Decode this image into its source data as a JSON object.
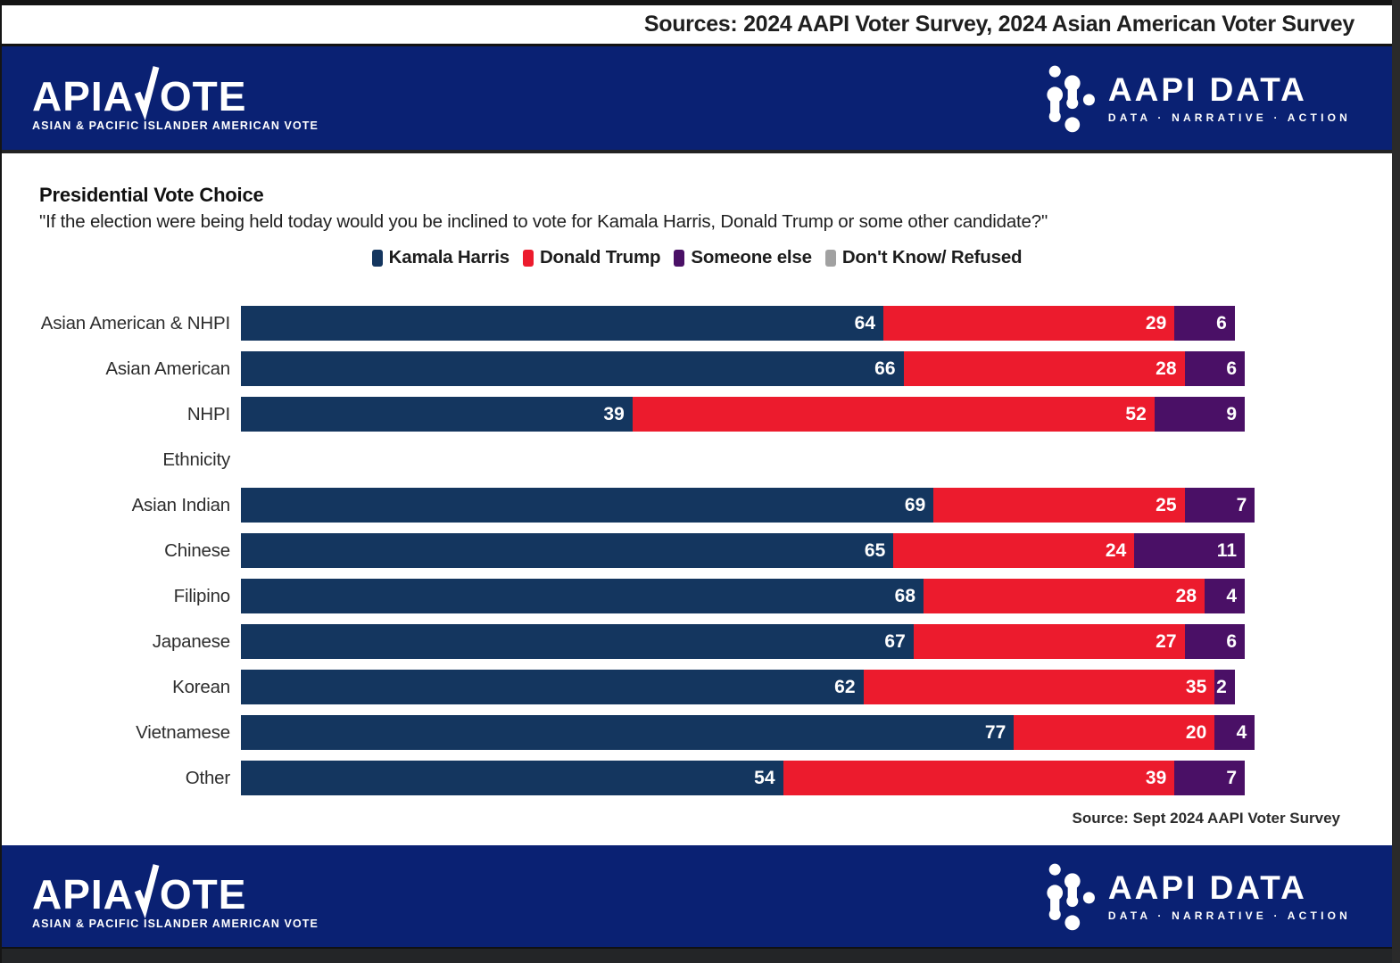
{
  "window": {
    "sources_bar": "Sources: 2024 AAPI Voter Survey, 2024 Asian American Voter Survey"
  },
  "branding": {
    "apiavote": {
      "wordmark_left": "APIA",
      "wordmark_right": "OTE",
      "tagline": "ASIAN & PACIFIC ISLANDER AMERICAN VOTE"
    },
    "aapi_data": {
      "wordmark": "AAPI DATA",
      "tagline": "DATA · NARRATIVE · ACTION"
    }
  },
  "chart_data": {
    "type": "bar",
    "orientation": "horizontal",
    "stacked": true,
    "grid": false,
    "legend_position": "top-center",
    "xlim": [
      0,
      100
    ],
    "title": "Presidential Vote Choice",
    "subtitle": "\"If the election were being held today would you be inclined to vote for Kamala Harris, Donald Trump or some other candidate?\"",
    "legend": [
      {
        "label": "Kamala Harris",
        "color": "#14365f"
      },
      {
        "label": "Donald Trump",
        "color": "#ec1b2d"
      },
      {
        "label": "Someone else",
        "color": "#4a1066"
      },
      {
        "label": "Don't Know/ Refused",
        "color": "#a1a1a1"
      }
    ],
    "rows": [
      {
        "label": "Asian American & NHPI",
        "values": [
          64,
          29,
          6
        ]
      },
      {
        "label": "Asian American",
        "values": [
          66,
          28,
          6
        ]
      },
      {
        "label": "NHPI",
        "values": [
          39,
          52,
          9
        ]
      },
      {
        "label": "Ethnicity",
        "section": true
      },
      {
        "label": "Asian Indian",
        "values": [
          69,
          25,
          7
        ]
      },
      {
        "label": "Chinese",
        "values": [
          65,
          24,
          11
        ]
      },
      {
        "label": "Filipino",
        "values": [
          68,
          28,
          4
        ]
      },
      {
        "label": "Japanese",
        "values": [
          67,
          27,
          6
        ]
      },
      {
        "label": "Korean",
        "values": [
          62,
          35,
          2
        ]
      },
      {
        "label": "Vietnamese",
        "values": [
          77,
          20,
          4
        ]
      },
      {
        "label": "Other",
        "values": [
          54,
          39,
          7
        ]
      }
    ],
    "source_note": "Source: Sept 2024 AAPI Voter Survey"
  }
}
